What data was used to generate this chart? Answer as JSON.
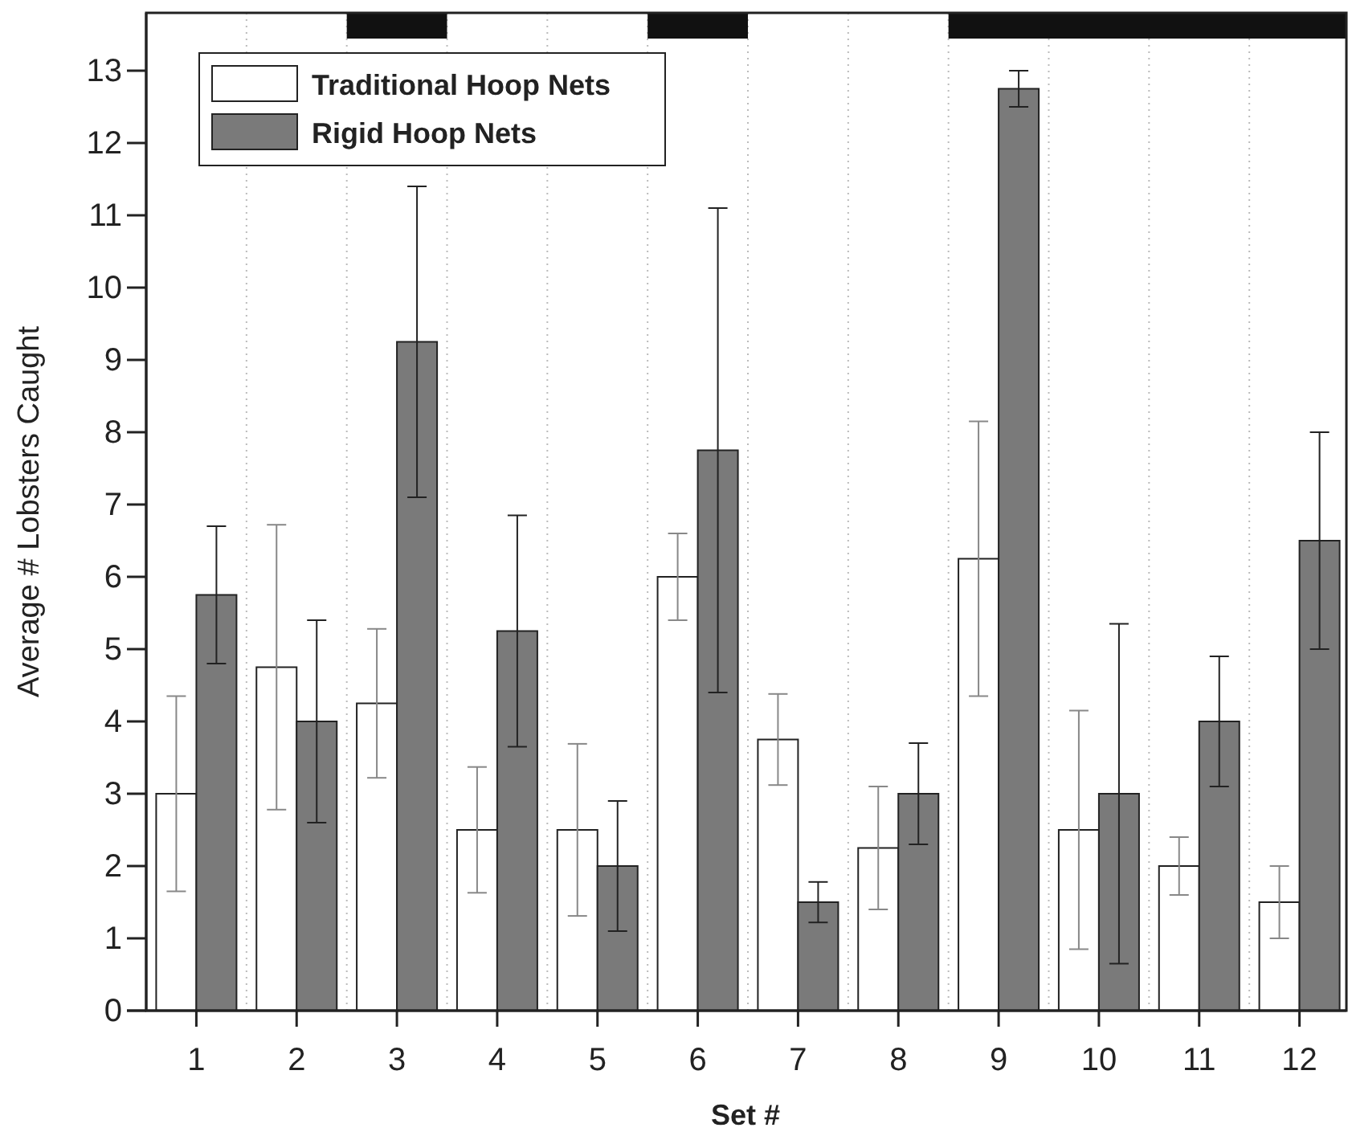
{
  "chart_data": {
    "type": "bar",
    "xlabel": "Set #",
    "ylabel": "Average # Lobsters Caught",
    "categories": [
      "1",
      "2",
      "3",
      "4",
      "5",
      "6",
      "7",
      "8",
      "9",
      "10",
      "11",
      "12"
    ],
    "series": [
      {
        "name": "Traditional Hoop Nets",
        "color": "#ffffff",
        "values": [
          3,
          4.75,
          4.25,
          2.5,
          2.5,
          6,
          3.75,
          2.25,
          6.25,
          2.5,
          2,
          1.5
        ],
        "errors": [
          1.35,
          1.97,
          1.03,
          0.87,
          1.19,
          0.6,
          0.63,
          0.85,
          1.9,
          1.65,
          0.4,
          0.5
        ]
      },
      {
        "name": "Rigid Hoop Nets",
        "color": "#7a7a7a",
        "values": [
          5.75,
          4,
          9.25,
          5.25,
          2,
          7.75,
          1.5,
          3,
          12.75,
          3,
          4,
          6.5
        ],
        "errors": [
          0.95,
          1.4,
          2.15,
          1.6,
          0.9,
          3.35,
          0.28,
          0.7,
          0.25,
          2.35,
          0.9,
          1.5
        ]
      }
    ],
    "ylim": [
      0,
      13.8
    ],
    "yticks": [
      0,
      1,
      2,
      3,
      4,
      5,
      6,
      7,
      8,
      9,
      10,
      11,
      12,
      13
    ],
    "grid": "x",
    "legend": "top left"
  }
}
